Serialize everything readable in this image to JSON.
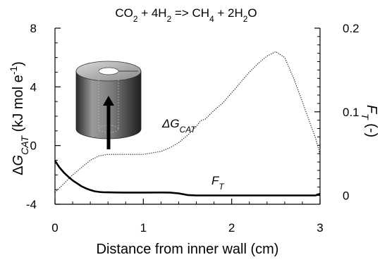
{
  "chart_data": {
    "type": "line",
    "title": {
      "parts": [
        {
          "t": "CO"
        },
        {
          "t": "2",
          "sub": true
        },
        {
          "t": " + 4H"
        },
        {
          "t": "2",
          "sub": true
        },
        {
          "t": " => CH"
        },
        {
          "t": "4",
          "sub": true
        },
        {
          "t": " + 2H"
        },
        {
          "t": "2",
          "sub": true
        },
        {
          "t": "O"
        }
      ]
    },
    "xlabel": "Distance from inner wall (cm)",
    "ylabel_left": {
      "parts": [
        {
          "t": "Δ"
        },
        {
          "t": "G",
          "italic": true
        },
        {
          "t": "CAT",
          "sub": true,
          "italic": true
        },
        {
          "t": " (kJ mol e"
        },
        {
          "t": "-1",
          "sup": true
        },
        {
          "t": ")"
        }
      ]
    },
    "ylabel_right": {
      "parts": [
        {
          "t": "F",
          "italic": true
        },
        {
          "t": "T",
          "sub": true,
          "italic": true
        },
        {
          "t": " (-)"
        }
      ]
    },
    "xlim": [
      0,
      3
    ],
    "ylim_left": [
      -4,
      8
    ],
    "ylim_right": [
      -0.0105,
      0.2
    ],
    "x_ticks": [
      0,
      1,
      2,
      3
    ],
    "y_left_ticks": [
      -4,
      0,
      4,
      8
    ],
    "y_right_ticks": [
      0,
      0.1,
      0.2
    ],
    "x_tick_labels": [
      "0",
      "1",
      "2",
      "3"
    ],
    "y_left_tick_labels": [
      "-4",
      "0",
      "4",
      "8"
    ],
    "y_right_tick_labels": [
      "0",
      "0.1",
      "0.2"
    ],
    "grid": false,
    "series": [
      {
        "label_parts": [
          {
            "t": "Δ"
          },
          {
            "t": "G",
            "italic": true
          },
          {
            "t": "CAT",
            "sub": true,
            "italic": true
          }
        ],
        "axis": "left",
        "style": "dotted",
        "x": [
          0.0,
          0.1,
          0.2,
          0.3,
          0.4,
          0.5,
          0.6,
          0.7,
          0.8,
          0.9,
          1.0,
          1.1,
          1.2,
          1.3,
          1.4,
          1.5,
          1.6,
          1.65,
          1.7,
          1.8,
          1.9,
          2.0,
          2.1,
          2.2,
          2.3,
          2.4,
          2.5,
          2.6,
          2.7,
          2.8,
          2.9,
          2.95,
          3.0
        ],
        "y": [
          -3.2,
          -2.6,
          -2.0,
          -1.5,
          -1.0,
          -0.7,
          -0.6,
          -0.6,
          -0.6,
          -0.6,
          -0.6,
          -0.5,
          -0.4,
          -0.15,
          0.2,
          0.7,
          1.3,
          1.7,
          1.8,
          2.4,
          2.9,
          3.6,
          4.3,
          5.0,
          5.6,
          6.1,
          6.4,
          6.0,
          4.6,
          3.0,
          1.3,
          0.5,
          -0.6
        ]
      },
      {
        "label_parts": [
          {
            "t": "F",
            "italic": true
          },
          {
            "t": "T",
            "sub": true,
            "italic": true
          }
        ],
        "axis": "right",
        "style": "solid",
        "x": [
          0.0,
          0.05,
          0.1,
          0.15,
          0.2,
          0.25,
          0.3,
          0.35,
          0.4,
          0.45,
          0.5,
          0.55,
          0.6,
          0.7,
          0.8,
          1.0,
          1.2,
          1.3,
          1.4,
          1.5,
          1.6,
          1.8,
          2.0,
          2.5,
          2.95,
          2.97,
          3.0
        ],
        "y": [
          0.0415,
          0.0335,
          0.0275,
          0.0225,
          0.018,
          0.0145,
          0.011,
          0.0085,
          0.0065,
          0.005,
          0.0042,
          0.0038,
          0.0037,
          0.0036,
          0.0035,
          0.0035,
          0.0036,
          0.0035,
          0.0025,
          0.0005,
          0.0,
          0.0,
          0.0,
          0.0,
          0.0,
          0.001,
          0.002
        ]
      }
    ]
  }
}
